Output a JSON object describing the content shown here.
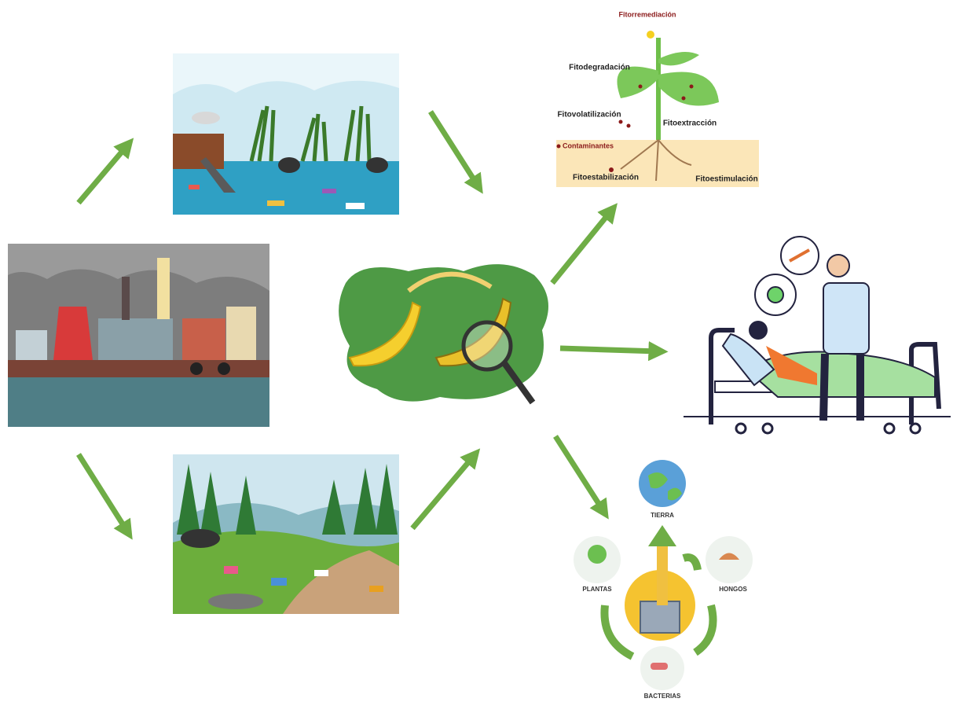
{
  "phytoremediation": {
    "title": "Fitorremediación",
    "labels": [
      "Fitodegradación",
      "Fitovolatilización",
      "Fitoextracción",
      "Contaminantes",
      "Fitoestabilización",
      "Fitoestimulación"
    ]
  },
  "cycle": {
    "labels": [
      "TIERRA",
      "PLANTAS",
      "HONGOS",
      "BACTERIAS"
    ]
  }
}
